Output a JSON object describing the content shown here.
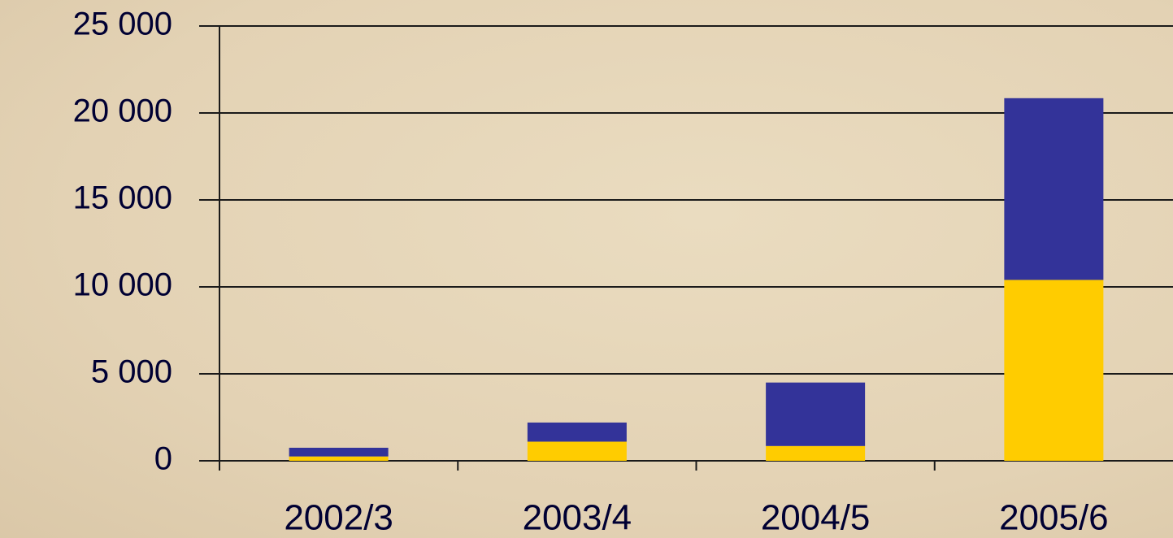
{
  "chart_data": {
    "type": "stacked_bar",
    "categories": [
      "2002/3",
      "2003/4",
      "2004/5",
      "2005/6"
    ],
    "series": [
      {
        "color": "#ffcc00",
        "values": [
          250,
          1100,
          850,
          10400
        ]
      },
      {
        "color": "#333399",
        "values": [
          500,
          1100,
          3650,
          10450
        ]
      }
    ],
    "ylim": [
      0,
      25000
    ],
    "yticks": [
      0,
      {
        "value": 5000,
        "label": "5 000"
      },
      {
        "value": 10000,
        "label": "10 000"
      },
      {
        "value": 15000,
        "label": "15 000"
      },
      {
        "value": 20000,
        "label": "20 000"
      },
      {
        "value": 25000,
        "label": "25 000"
      }
    ],
    "grid": true
  }
}
